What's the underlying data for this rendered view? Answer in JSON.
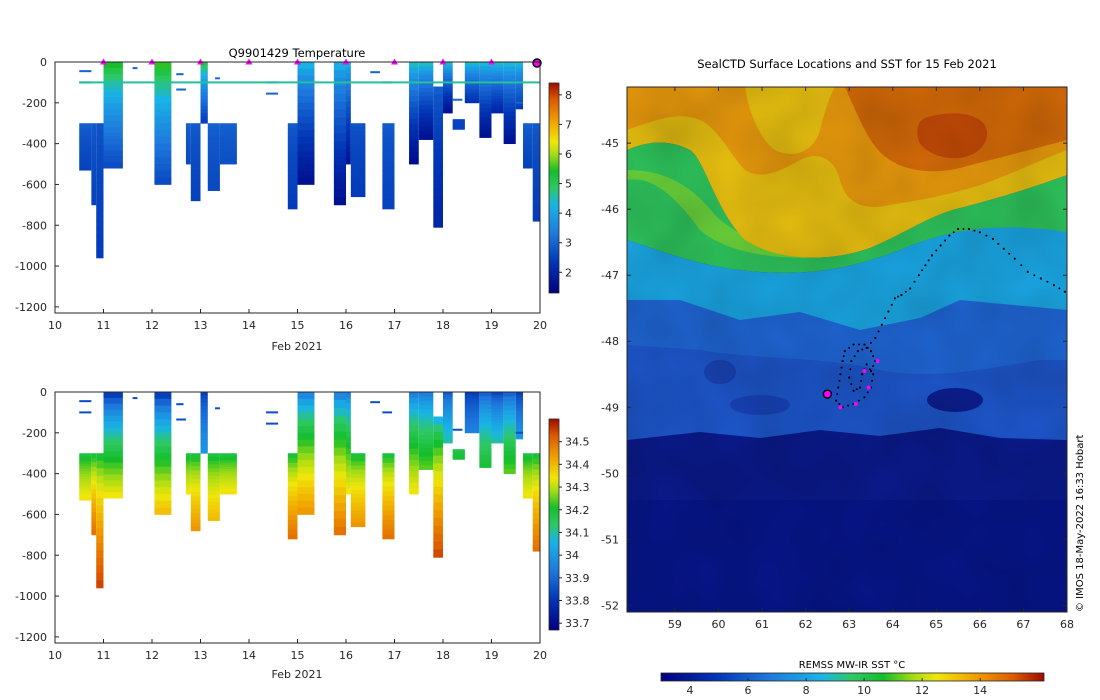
{
  "chart_data": [
    {
      "type": "heatmap",
      "id": "temperature-section",
      "title": "Q9901429  Temperature",
      "xlabel": "Feb 2021",
      "ylabel": "",
      "xlim": [
        10,
        20
      ],
      "ylim": [
        -1230,
        0
      ],
      "x_ticks": [
        "10",
        "11",
        "12",
        "13",
        "14",
        "15",
        "16",
        "17",
        "18",
        "19",
        "20"
      ],
      "y_ticks": [
        "0",
        "-200",
        "-400",
        "-600",
        "-800",
        "-1000",
        "-1200"
      ],
      "colorbar": {
        "min": 1.3,
        "max": 8.4,
        "ticks": [
          "2",
          "3",
          "4",
          "5",
          "6",
          "7",
          "8"
        ]
      },
      "surface_markers": [
        11,
        12,
        13,
        14,
        15,
        16,
        17,
        18,
        19
      ],
      "current_marker": 20,
      "shallow_line_value": 4.6,
      "profiles": [
        {
          "t0": 10.5,
          "t1": 10.75,
          "depth": 530,
          "shallow": 300,
          "surf": 3.0,
          "deep": 2.5
        },
        {
          "t0": 10.75,
          "t1": 10.85,
          "depth": 700,
          "shallow": 300,
          "surf": 2.9,
          "deep": 2.5
        },
        {
          "t0": 10.85,
          "t1": 11.0,
          "depth": 960,
          "shallow": 300,
          "surf": 2.8,
          "deep": 2.4
        },
        {
          "t0": 11.0,
          "t1": 11.4,
          "depth": 520,
          "shallow": 0,
          "surf": 5.8,
          "deep": 2.6
        },
        {
          "t0": 12.05,
          "t1": 12.4,
          "depth": 600,
          "shallow": 0,
          "surf": 5.9,
          "deep": 2.6
        },
        {
          "t0": 12.7,
          "t1": 12.8,
          "depth": 500,
          "shallow": 300,
          "surf": 3.0,
          "deep": 2.6
        },
        {
          "t0": 12.8,
          "t1": 13.0,
          "depth": 680,
          "shallow": 300,
          "surf": 2.9,
          "deep": 2.5
        },
        {
          "t0": 13.0,
          "t1": 13.15,
          "depth": 300,
          "shallow": 0,
          "surf": 5.5,
          "deep": 2.4
        },
        {
          "t0": 13.15,
          "t1": 13.4,
          "depth": 630,
          "shallow": 300,
          "surf": 3.0,
          "deep": 2.6
        },
        {
          "t0": 13.4,
          "t1": 13.75,
          "depth": 500,
          "shallow": 300,
          "surf": 3.0,
          "deep": 2.7
        },
        {
          "t0": 14.8,
          "t1": 15.0,
          "depth": 720,
          "shallow": 300,
          "surf": 2.9,
          "deep": 2.4
        },
        {
          "t0": 15.0,
          "t1": 15.35,
          "depth": 600,
          "shallow": 0,
          "surf": 4.6,
          "deep": 1.6
        },
        {
          "t0": 15.75,
          "t1": 16.0,
          "depth": 700,
          "shallow": 0,
          "surf": 4.5,
          "deep": 1.6
        },
        {
          "t0": 16.0,
          "t1": 16.1,
          "depth": 500,
          "shallow": 0,
          "surf": 4.5,
          "deep": 1.7
        },
        {
          "t0": 16.1,
          "t1": 16.4,
          "depth": 660,
          "shallow": 300,
          "surf": 2.8,
          "deep": 2.4
        },
        {
          "t0": 16.75,
          "t1": 17.0,
          "depth": 720,
          "shallow": 300,
          "surf": 2.9,
          "deep": 2.5
        },
        {
          "t0": 17.3,
          "t1": 17.5,
          "depth": 500,
          "shallow": 0,
          "surf": 4.8,
          "deep": 1.5
        },
        {
          "t0": 17.5,
          "t1": 17.8,
          "depth": 380,
          "shallow": 0,
          "surf": 4.8,
          "deep": 1.6
        },
        {
          "t0": 17.8,
          "t1": 18.0,
          "depth": 810,
          "shallow": 120,
          "surf": 3.0,
          "deep": 2.0
        },
        {
          "t0": 18.0,
          "t1": 18.2,
          "depth": 250,
          "shallow": 0,
          "surf": 4.8,
          "deep": 1.6
        },
        {
          "t0": 18.2,
          "t1": 18.45,
          "depth": 330,
          "shallow": 280,
          "surf": 2.6,
          "deep": 2.5
        },
        {
          "t0": 18.45,
          "t1": 18.75,
          "depth": 200,
          "shallow": 0,
          "surf": 4.8,
          "deep": 2.2
        },
        {
          "t0": 18.75,
          "t1": 19.0,
          "depth": 370,
          "shallow": 0,
          "surf": 4.7,
          "deep": 1.6
        },
        {
          "t0": 19.0,
          "t1": 19.25,
          "depth": 250,
          "shallow": 0,
          "surf": 4.8,
          "deep": 2.0
        },
        {
          "t0": 19.25,
          "t1": 19.5,
          "depth": 400,
          "shallow": 0,
          "surf": 4.7,
          "deep": 1.6
        },
        {
          "t0": 19.5,
          "t1": 19.65,
          "depth": 230,
          "shallow": 0,
          "surf": 4.7,
          "deep": 2.4
        },
        {
          "t0": 19.65,
          "t1": 19.85,
          "depth": 520,
          "shallow": 300,
          "surf": 3.0,
          "deep": 2.5
        },
        {
          "t0": 19.85,
          "t1": 20.0,
          "depth": 780,
          "shallow": 300,
          "surf": 2.9,
          "deep": 2.4
        }
      ]
    },
    {
      "type": "heatmap",
      "id": "salinity-section",
      "title": "",
      "xlabel": "Feb 2021",
      "ylabel": "",
      "xlim": [
        10,
        20
      ],
      "ylim": [
        -1230,
        0
      ],
      "x_ticks": [
        "10",
        "11",
        "12",
        "13",
        "14",
        "15",
        "16",
        "17",
        "18",
        "19",
        "20"
      ],
      "y_ticks": [
        "0",
        "-200",
        "-400",
        "-600",
        "-800",
        "-1000",
        "-1200"
      ],
      "colorbar": {
        "min": 33.67,
        "max": 34.6,
        "ticks": [
          "33.7",
          "33.8",
          "33.9",
          "34",
          "34.1",
          "34.2",
          "34.3",
          "34.4",
          "34.5"
        ]
      },
      "profiles": [
        {
          "t0": 10.5,
          "t1": 10.75,
          "depth": 530,
          "shallow": 300,
          "surf": 34.15,
          "deep": 34.35
        },
        {
          "t0": 10.75,
          "t1": 10.85,
          "depth": 700,
          "shallow": 300,
          "surf": 34.15,
          "deep": 34.5
        },
        {
          "t0": 10.85,
          "t1": 11.0,
          "depth": 960,
          "shallow": 300,
          "surf": 34.15,
          "deep": 34.55
        },
        {
          "t0": 11.0,
          "t1": 11.4,
          "depth": 520,
          "shallow": 0,
          "surf": 33.75,
          "deep": 34.35
        },
        {
          "t0": 12.05,
          "t1": 12.4,
          "depth": 600,
          "shallow": 0,
          "surf": 33.75,
          "deep": 34.4
        },
        {
          "t0": 12.7,
          "t1": 12.8,
          "depth": 500,
          "shallow": 300,
          "surf": 34.15,
          "deep": 34.35
        },
        {
          "t0": 12.8,
          "t1": 13.0,
          "depth": 680,
          "shallow": 300,
          "surf": 34.15,
          "deep": 34.45
        },
        {
          "t0": 13.0,
          "t1": 13.15,
          "depth": 300,
          "shallow": 0,
          "surf": 33.8,
          "deep": 34.0
        },
        {
          "t0": 13.15,
          "t1": 13.4,
          "depth": 630,
          "shallow": 300,
          "surf": 34.15,
          "deep": 34.4
        },
        {
          "t0": 13.4,
          "t1": 13.75,
          "depth": 500,
          "shallow": 300,
          "surf": 34.15,
          "deep": 34.35
        },
        {
          "t0": 14.8,
          "t1": 15.0,
          "depth": 720,
          "shallow": 300,
          "surf": 34.15,
          "deep": 34.5
        },
        {
          "t0": 15.0,
          "t1": 15.35,
          "depth": 600,
          "shallow": 0,
          "surf": 33.9,
          "deep": 34.45
        },
        {
          "t0": 15.75,
          "t1": 16.0,
          "depth": 700,
          "shallow": 0,
          "surf": 33.9,
          "deep": 34.5
        },
        {
          "t0": 16.0,
          "t1": 16.1,
          "depth": 500,
          "shallow": 0,
          "surf": 33.9,
          "deep": 34.35
        },
        {
          "t0": 16.1,
          "t1": 16.4,
          "depth": 660,
          "shallow": 300,
          "surf": 34.15,
          "deep": 34.45
        },
        {
          "t0": 16.75,
          "t1": 17.0,
          "depth": 720,
          "shallow": 300,
          "surf": 34.15,
          "deep": 34.5
        },
        {
          "t0": 17.3,
          "t1": 17.5,
          "depth": 500,
          "shallow": 0,
          "surf": 33.9,
          "deep": 34.35
        },
        {
          "t0": 17.5,
          "t1": 17.8,
          "depth": 380,
          "shallow": 0,
          "surf": 33.9,
          "deep": 34.25
        },
        {
          "t0": 17.8,
          "t1": 18.0,
          "depth": 810,
          "shallow": 120,
          "surf": 34.0,
          "deep": 34.55
        },
        {
          "t0": 18.0,
          "t1": 18.2,
          "depth": 250,
          "shallow": 0,
          "surf": 33.85,
          "deep": 34.1
        },
        {
          "t0": 18.2,
          "t1": 18.45,
          "depth": 330,
          "shallow": 280,
          "surf": 34.15,
          "deep": 34.2
        },
        {
          "t0": 18.45,
          "t1": 18.75,
          "depth": 200,
          "shallow": 0,
          "surf": 33.8,
          "deep": 33.95
        },
        {
          "t0": 18.75,
          "t1": 19.0,
          "depth": 370,
          "shallow": 0,
          "surf": 33.85,
          "deep": 34.2
        },
        {
          "t0": 19.0,
          "t1": 19.25,
          "depth": 250,
          "shallow": 0,
          "surf": 33.8,
          "deep": 34.1
        },
        {
          "t0": 19.25,
          "t1": 19.5,
          "depth": 400,
          "shallow": 0,
          "surf": 33.85,
          "deep": 34.25
        },
        {
          "t0": 19.5,
          "t1": 19.65,
          "depth": 230,
          "shallow": 0,
          "surf": 33.8,
          "deep": 34.0
        },
        {
          "t0": 19.65,
          "t1": 19.85,
          "depth": 520,
          "shallow": 300,
          "surf": 34.15,
          "deep": 34.35
        },
        {
          "t0": 19.85,
          "t1": 20.0,
          "depth": 780,
          "shallow": 300,
          "surf": 34.15,
          "deep": 34.5
        }
      ]
    },
    {
      "type": "heatmap",
      "id": "sst-map",
      "title": "SealCTD Surface Locations and SST for 15 Feb 2021",
      "xlabel": "",
      "ylabel": "",
      "xlim": [
        57.9,
        68
      ],
      "ylim": [
        -52.1,
        -44.15
      ],
      "x_ticks": [
        "59",
        "60",
        "61",
        "62",
        "63",
        "64",
        "65",
        "66",
        "67",
        "68"
      ],
      "y_ticks": [
        "-45",
        "-46",
        "-47",
        "-48",
        "-49",
        "-50",
        "-51",
        "-52"
      ],
      "colorbar": {
        "label": "REMSS MW-IR SST °C",
        "min": 3.0,
        "max": 16.2,
        "ticks": [
          "4",
          "6",
          "8",
          "10",
          "12",
          "14"
        ]
      },
      "current_position": {
        "lon": 62.5,
        "lat": -48.8
      },
      "track": [
        [
          63.5,
          -48.45
        ],
        [
          63.6,
          -48.3
        ],
        [
          63.5,
          -48.15
        ],
        [
          63.35,
          -48.05
        ],
        [
          63.1,
          -48.05
        ],
        [
          62.9,
          -48.15
        ],
        [
          62.85,
          -48.3
        ],
        [
          62.8,
          -48.5
        ],
        [
          62.75,
          -48.7
        ],
        [
          62.7,
          -48.9
        ],
        [
          62.85,
          -49.0
        ],
        [
          63.1,
          -48.95
        ],
        [
          63.35,
          -48.85
        ],
        [
          63.5,
          -48.7
        ],
        [
          63.55,
          -48.5
        ],
        [
          63.4,
          -48.35
        ],
        [
          63.3,
          -48.5
        ],
        [
          63.25,
          -48.7
        ],
        [
          63.1,
          -48.75
        ],
        [
          63.0,
          -48.55
        ],
        [
          63.05,
          -48.3
        ],
        [
          63.2,
          -48.15
        ],
        [
          63.4,
          -48.1
        ],
        [
          63.6,
          -47.95
        ],
        [
          63.75,
          -47.75
        ],
        [
          63.9,
          -47.55
        ],
        [
          64.05,
          -47.35
        ],
        [
          64.2,
          -47.3
        ],
        [
          64.4,
          -47.2
        ],
        [
          64.6,
          -47.0
        ],
        [
          64.75,
          -46.85
        ],
        [
          64.9,
          -46.7
        ],
        [
          65.1,
          -46.55
        ],
        [
          65.3,
          -46.4
        ],
        [
          65.5,
          -46.3
        ],
        [
          65.75,
          -46.3
        ],
        [
          66.0,
          -46.35
        ],
        [
          66.3,
          -46.45
        ],
        [
          66.55,
          -46.6
        ],
        [
          66.8,
          -46.75
        ],
        [
          67.1,
          -46.95
        ],
        [
          67.4,
          -47.05
        ],
        [
          67.7,
          -47.15
        ],
        [
          67.95,
          -47.25
        ]
      ],
      "surface_hits": [
        [
          63.65,
          -48.3
        ],
        [
          63.45,
          -48.7
        ],
        [
          63.35,
          -48.45
        ],
        [
          63.15,
          -48.95
        ],
        [
          62.8,
          -49.0
        ]
      ]
    }
  ],
  "footer": {
    "credit": "© IMOS 18-May-2022 16:33 Hobart"
  }
}
